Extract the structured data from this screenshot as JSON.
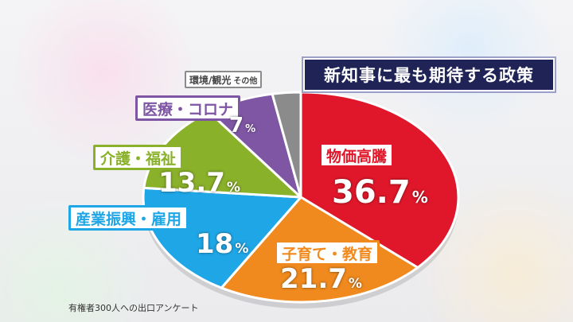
{
  "title": "新知事に最も期待する政策",
  "footnote": "有権者300人への出口アンケート",
  "chart_data": {
    "type": "pie",
    "title": "新知事に最も期待する政策",
    "unit": "%",
    "slices": [
      {
        "label": "物価高騰",
        "value": 36.7,
        "value_text": "36.7",
        "color": "#e0172a"
      },
      {
        "label": "子育て・教育",
        "value": 21.7,
        "value_text": "21.7",
        "color": "#f08a1e"
      },
      {
        "label": "産業振興・雇用",
        "value": 18,
        "value_text": "18",
        "color": "#1fa6e6"
      },
      {
        "label": "介護・福祉",
        "value": 13.7,
        "value_text": "13.7",
        "color": "#8ab12a"
      },
      {
        "label": "医療・コロナ",
        "value": 7,
        "value_text": "7",
        "color": "#7e56a4"
      },
      {
        "label": "環境/観光",
        "label_sub": "その他",
        "value": 2.9,
        "value_text": "",
        "color": "#8b8b8b"
      }
    ]
  }
}
